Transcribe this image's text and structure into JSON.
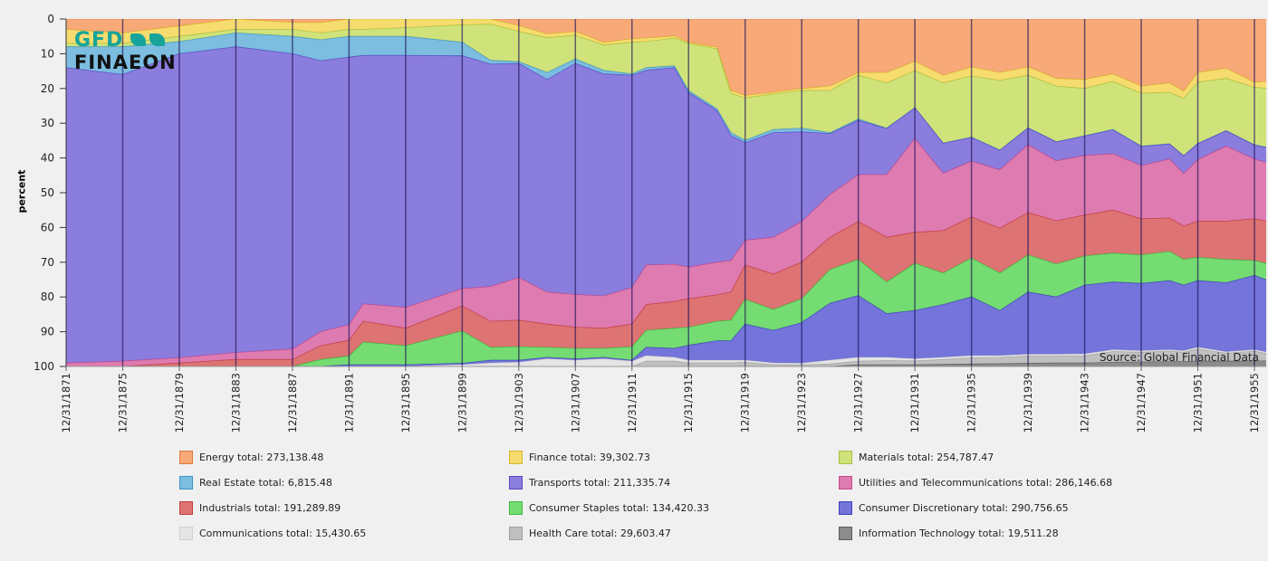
{
  "logo": {
    "top": "GFD",
    "bottom": "FINAEON"
  },
  "source_label": "Source: Global Financial Data",
  "chart_data": {
    "type": "area",
    "stacked": true,
    "title": "",
    "xlabel": "",
    "ylabel": "percent",
    "ylim": [
      0,
      100
    ],
    "y_inverted": true,
    "y_ticks": [
      "0",
      "10",
      "20",
      "30",
      "40",
      "50",
      "60",
      "70",
      "80",
      "90",
      "100"
    ],
    "x_tick_labels": [
      "12/31/1871",
      "12/31/1875",
      "12/31/1879",
      "12/31/1883",
      "12/31/1887",
      "12/31/1891",
      "12/31/1895",
      "12/31/1899",
      "12/31/1903",
      "12/31/1907",
      "12/31/1911",
      "12/31/1915",
      "12/31/1919",
      "12/31/1923",
      "12/31/1927",
      "12/31/1931",
      "12/31/1935",
      "12/31/1939",
      "12/31/1943",
      "12/31/1947",
      "12/31/1951",
      "12/31/1955"
    ],
    "x_tick_years": [
      1871,
      1875,
      1879,
      1883,
      1887,
      1891,
      1895,
      1899,
      1903,
      1907,
      1911,
      1915,
      1919,
      1923,
      1927,
      1931,
      1935,
      1939,
      1943,
      1947,
      1951,
      1955
    ],
    "legend_position": "bottom",
    "x": [
      1871,
      1875,
      1879,
      1883,
      1887,
      1889,
      1891,
      1892,
      1895,
      1899,
      1901,
      1903,
      1905,
      1907,
      1909,
      1911,
      1912,
      1914,
      1915,
      1917,
      1918,
      1919,
      1921,
      1923,
      1925,
      1927,
      1929,
      1931,
      1933,
      1935,
      1937,
      1939,
      1941,
      1943,
      1945,
      1947,
      1949,
      1950,
      1951,
      1953,
      1955,
      1956
    ],
    "series": [
      {
        "name": "Energy",
        "legend": "Energy total: 273,138.48",
        "color": "#f7a978",
        "border": "#e07a3a",
        "values": [
          3,
          4,
          2,
          0,
          1,
          1,
          0,
          0,
          0,
          0,
          0,
          1.9,
          4.3,
          3.6,
          6.7,
          5.7,
          5.5,
          4.9,
          6.7,
          8.1,
          20.6,
          22,
          21.1,
          20,
          19.3,
          15.4,
          15.4,
          12.2,
          16.2,
          13.8,
          15.4,
          13.8,
          17.1,
          17.4,
          15.8,
          19.3,
          18.4,
          20.8,
          15.4,
          14.2,
          18.2,
          18
        ]
      },
      {
        "name": "Finance",
        "legend": "Finance total: 39,302.73",
        "color": "#f6dc6f",
        "border": "#d8b52a",
        "values": [
          4,
          3,
          3,
          3,
          2,
          3,
          3,
          3,
          2.5,
          1.7,
          1.5,
          1.7,
          1.1,
          1.1,
          0.8,
          1,
          1,
          0.6,
          0.3,
          0.5,
          0.8,
          0.7,
          0.5,
          0.6,
          1.3,
          0.8,
          3,
          2.7,
          2.2,
          2.6,
          2.3,
          2.4,
          2.2,
          2.6,
          2.2,
          2.1,
          2.7,
          2.1,
          2.8,
          2.9,
          1.5,
          2
        ]
      },
      {
        "name": "Materials",
        "legend": "Materials total: 254,787.47",
        "color": "#d0e37a",
        "border": "#a8c040",
        "values": [
          1,
          1,
          1.5,
          1,
          2,
          2,
          2,
          2,
          2.5,
          5,
          10.4,
          8.7,
          10,
          6.8,
          7.3,
          9.1,
          7.5,
          8,
          13.6,
          17.2,
          11.3,
          12.2,
          10.2,
          10.8,
          12.1,
          12.6,
          13,
          10.6,
          17.3,
          17.6,
          20,
          15.1,
          16,
          13.6,
          13.8,
          15.2,
          14.8,
          16.4,
          17.6,
          15,
          16.5,
          17
        ]
      },
      {
        "name": "Real Estate",
        "legend": "Real Estate total: 6,815.48",
        "color": "#7cbde0",
        "border": "#3d95c6",
        "values": [
          6,
          8,
          3.5,
          4,
          5,
          6,
          6,
          5.5,
          5.5,
          3.9,
          1.1,
          0.5,
          2,
          1.3,
          1,
          0.4,
          0.8,
          0.5,
          0.6,
          0.5,
          0.9,
          0.7,
          0.9,
          1.1,
          0.3,
          0.4,
          0.1,
          0.1,
          0.1,
          0.1,
          0.1,
          0.1,
          0.1,
          0.1,
          0.1,
          0.1,
          0.1,
          0.1,
          0.1,
          0.1,
          0.1,
          0.1
        ]
      },
      {
        "name": "Transports",
        "legend": "Transports total: 211,335.74",
        "color": "#8b7ddd",
        "border": "#5a47c4",
        "values": [
          85,
          82.5,
          87.5,
          88,
          85,
          78,
          77,
          71.5,
          72.5,
          67,
          64,
          61.6,
          61.2,
          66.5,
          63.9,
          61.1,
          56,
          56.6,
          50.2,
          43.7,
          35.9,
          28.1,
          30.1,
          25.8,
          17.5,
          15.6,
          13.3,
          8.8,
          8.6,
          6.8,
          5.6,
          4.8,
          5.4,
          5.6,
          6.9,
          5.5,
          4.3,
          5.1,
          4.6,
          4.4,
          4,
          4.4
        ]
      },
      {
        "name": "Utilities and Telecommunications",
        "legend": "Utilities and Telecommunications total: 286,146.68",
        "color": "#de7bb0",
        "border": "#c44a8c",
        "values": [
          1,
          1.5,
          1.5,
          2,
          3,
          4,
          4.5,
          5,
          6,
          5,
          10,
          12.3,
          9.2,
          9.4,
          9.3,
          10.5,
          11.4,
          10.7,
          9.1,
          9.4,
          9.1,
          7.1,
          10.6,
          11.7,
          12.3,
          13.5,
          18,
          27,
          16.5,
          16.1,
          16.8,
          19.5,
          17.3,
          17.1,
          16.2,
          15.3,
          17,
          15.1,
          17.7,
          21.6,
          17.2,
          16.8
        ]
      },
      {
        "name": "Industrials",
        "legend": "Industrials total: 191,289.89",
        "color": "#dd7373",
        "border": "#c23e3e",
        "values": [
          0,
          0,
          1,
          2,
          2,
          4,
          4.5,
          6,
          5,
          7.2,
          7.5,
          7.6,
          6.7,
          6.1,
          5.8,
          6.5,
          7.4,
          7.7,
          8.2,
          7.6,
          8.1,
          9.9,
          10.2,
          10.5,
          9.3,
          10.9,
          12.9,
          8.9,
          12.2,
          11.8,
          12.9,
          12.2,
          12.4,
          11.8,
          12.4,
          10.4,
          9.6,
          9.6,
          10.4,
          11,
          12,
          12.2
        ]
      },
      {
        "name": "Consumer Staples",
        "legend": "Consumer Staples total: 134,420.33",
        "color": "#74dc72",
        "border": "#3fb83c",
        "values": [
          0,
          0,
          0,
          0,
          0,
          2,
          2.5,
          6.5,
          5.5,
          9.3,
          3.7,
          3.9,
          2.9,
          3,
          2.6,
          3.9,
          4.9,
          5.8,
          5.2,
          5.6,
          5.9,
          7.1,
          6,
          6.9,
          9.7,
          10.4,
          9.1,
          13.6,
          9.1,
          11.2,
          10.8,
          10.7,
          9.5,
          8.4,
          8.3,
          8.2,
          8.4,
          7.4,
          6.7,
          6.7,
          4.3,
          4.8
        ]
      },
      {
        "name": "Consumer Discretionary",
        "legend": "Consumer Discretionary total: 290,756.65",
        "color": "#7474db",
        "border": "#3f3fc0",
        "values": [
          0,
          0,
          0,
          0,
          0,
          0,
          0.5,
          0.5,
          0.5,
          0.4,
          0.8,
          0.6,
          0.4,
          0.4,
          0.4,
          0.3,
          2.4,
          2.6,
          4.3,
          5.6,
          5.6,
          10.4,
          9.4,
          11.7,
          16.4,
          17.8,
          12.6,
          13.9,
          15.2,
          16.9,
          13,
          17.9,
          16.5,
          19.8,
          19.5,
          19.4,
          19.9,
          18.9,
          19.2,
          19.9,
          21.4,
          20.7
        ]
      },
      {
        "name": "Communications",
        "legend": "Communications total: 15,430.65",
        "color": "#e5e5e5",
        "border": "#cfcfcf",
        "values": [
          0,
          0,
          0,
          0,
          0,
          0,
          0,
          0,
          0,
          0.5,
          1,
          1.2,
          2.2,
          1.8,
          2.2,
          1.5,
          1.6,
          1.1,
          0.8,
          0.8,
          0.8,
          0.6,
          0.5,
          0.4,
          1.1,
          1.1,
          0.9,
          0.6,
          0.6,
          0.6,
          0.5,
          0.5,
          0.5,
          0.5,
          0.5,
          0.4,
          0.4,
          0.4,
          0.5,
          0.4,
          0.4,
          0.4
        ]
      },
      {
        "name": "Health Care",
        "legend": "Health Care total: 29,603.47",
        "color": "#c0c0c0",
        "border": "#a0a0a0",
        "values": [
          0,
          0,
          0,
          0,
          0,
          0,
          0,
          0,
          0,
          0,
          0,
          0,
          0,
          0,
          0,
          0,
          1.5,
          1.5,
          1,
          1,
          1,
          1.2,
          0.5,
          0.5,
          0.7,
          1,
          1.2,
          1.1,
          1.4,
          1.8,
          1.8,
          2.1,
          2,
          2.1,
          3.1,
          2.8,
          3,
          2.7,
          3.5,
          2.3,
          2.8,
          2
        ]
      },
      {
        "name": "Information Technology",
        "legend": "Information Technology total: 19,511.28",
        "color": "#8c8c8c",
        "border": "#5a5a5a",
        "values": [
          0,
          0,
          0,
          0,
          0,
          0,
          0,
          0,
          0,
          0,
          0,
          0,
          0,
          0,
          0,
          0,
          0,
          0,
          0,
          0,
          0,
          0,
          0,
          0,
          0,
          0.5,
          0.5,
          0.5,
          0.6,
          0.7,
          0.8,
          0.9,
          1,
          1,
          1.2,
          1.3,
          1.4,
          1.4,
          1.5,
          1.5,
          1.6,
          1.6
        ]
      }
    ]
  }
}
